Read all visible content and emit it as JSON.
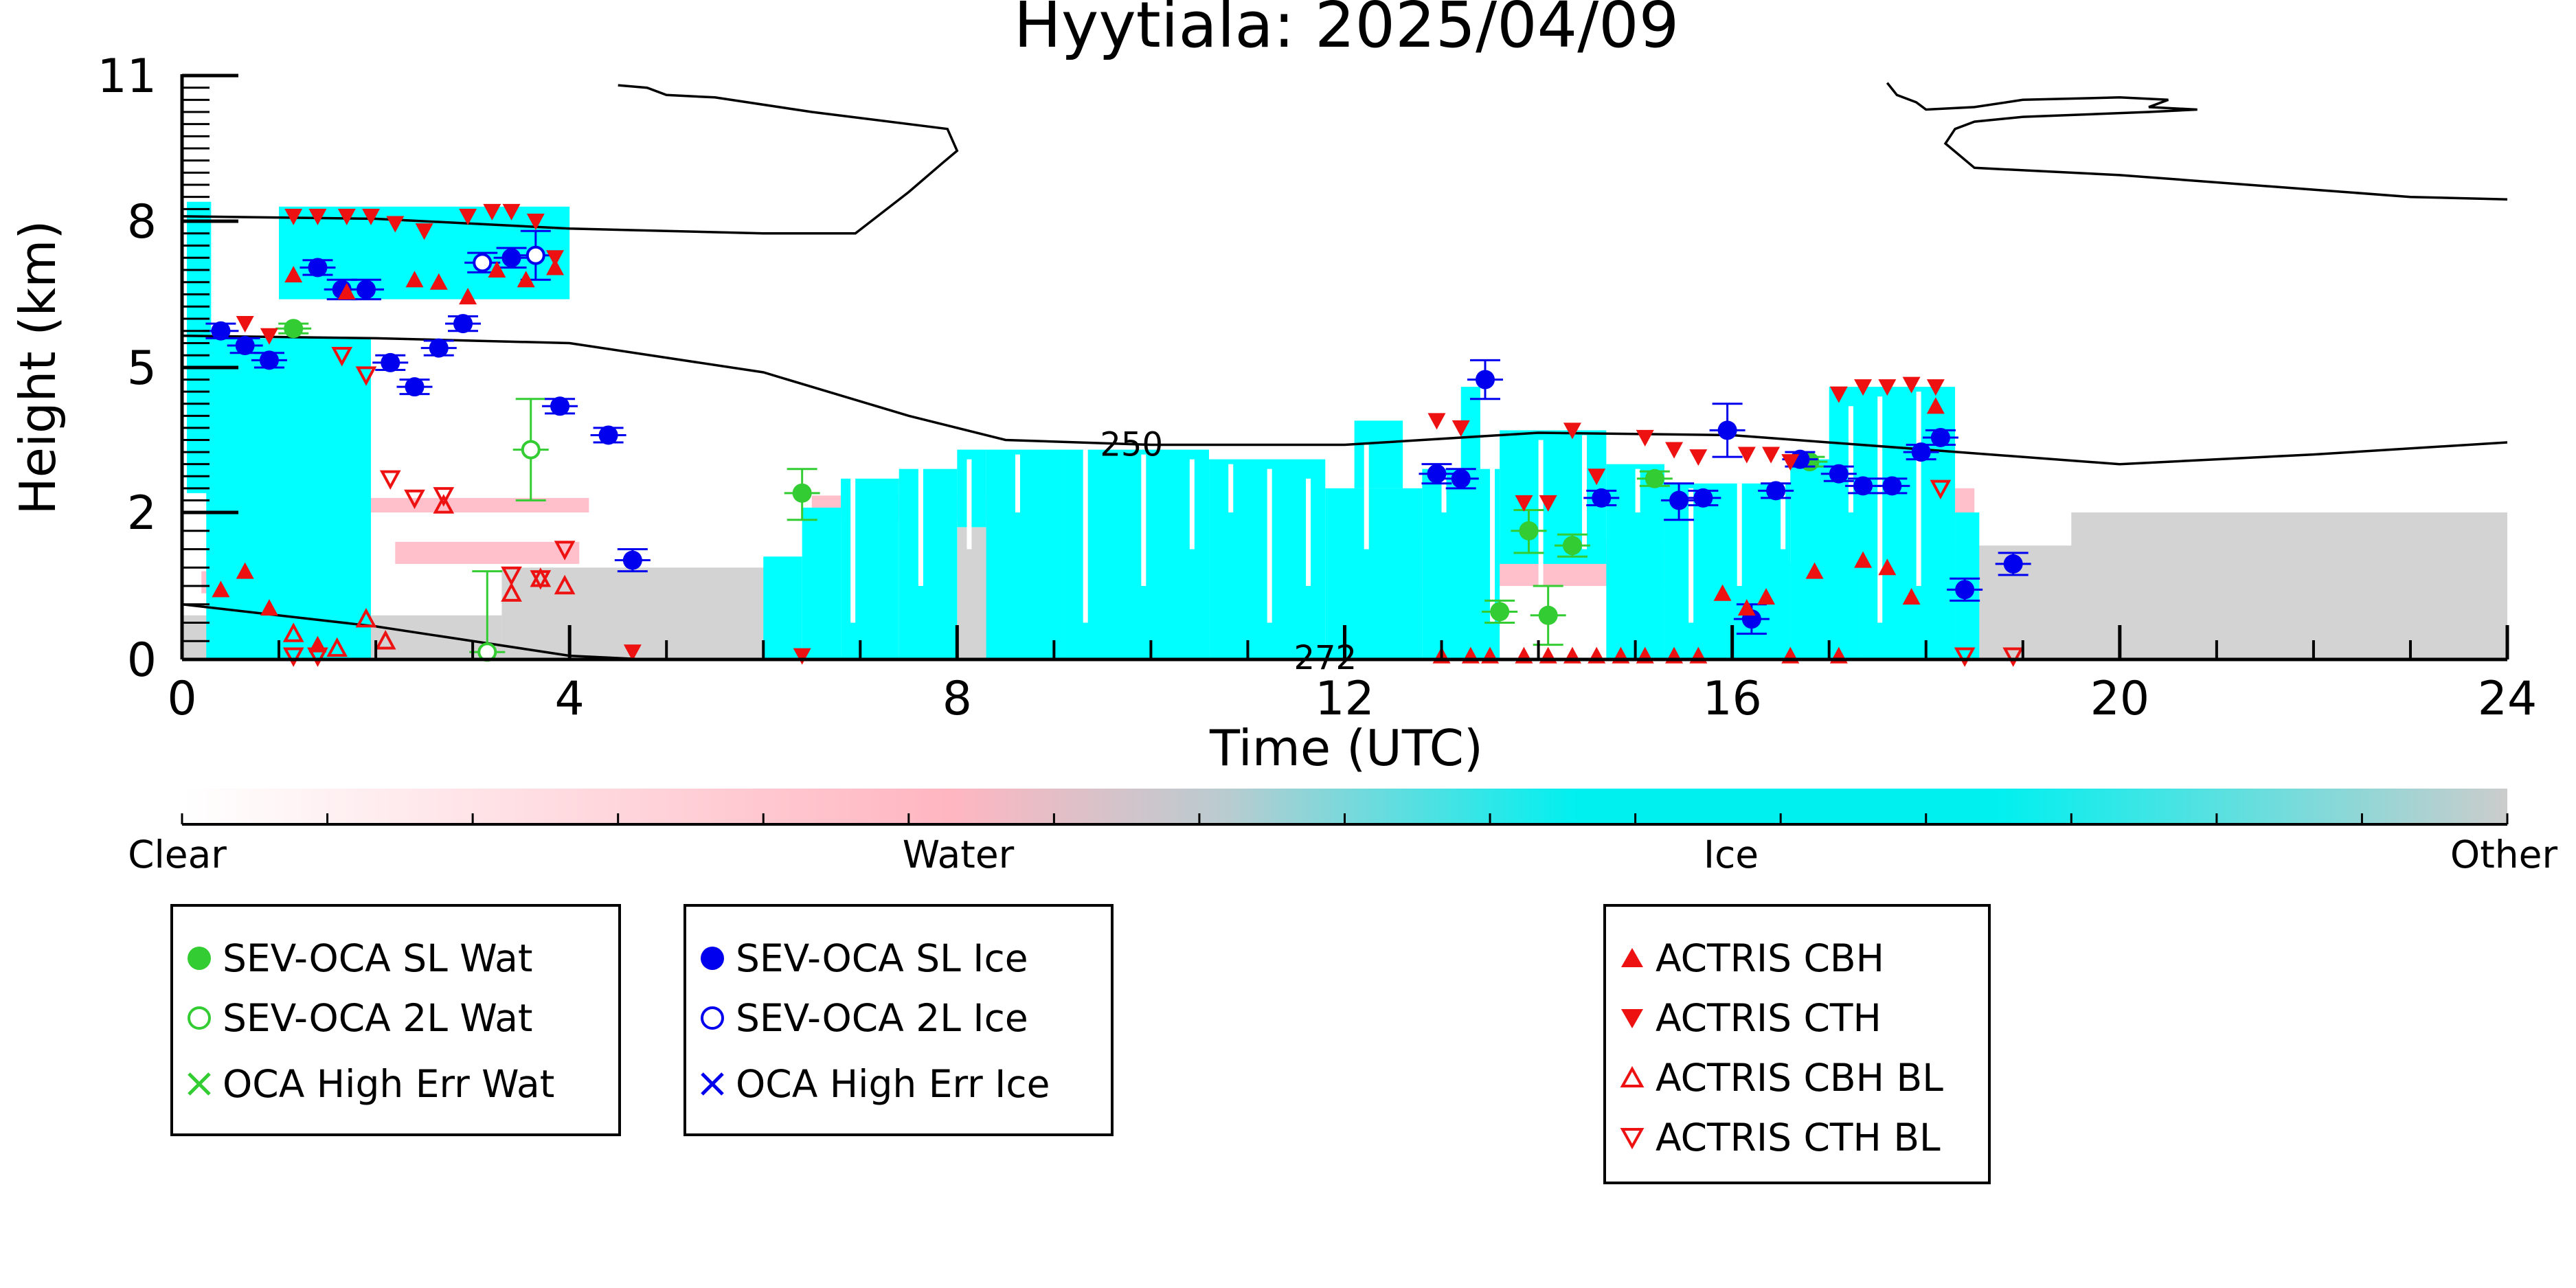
{
  "chart_data": {
    "type": "scatter",
    "title": "Hyytiala: 2025/04/09",
    "xlabel": "Time (UTC)",
    "ylabel": "Height (km)",
    "xlim": [
      0,
      24
    ],
    "ylim": [
      0,
      11
    ],
    "x_ticks": [
      0,
      4,
      8,
      12,
      16,
      20,
      24
    ],
    "y_ticks": [
      0,
      2,
      5,
      8,
      11
    ],
    "y_tick_labels": [
      "0",
      "2",
      "5",
      "8",
      "11"
    ],
    "colorbar": {
      "labels": [
        "Clear",
        "Water",
        "Ice",
        "Other"
      ],
      "colors": [
        "#ffffff",
        "#ffb6c1",
        "#00f0f0",
        "#cccccc"
      ]
    },
    "cloud_mask_colors": {
      "water": "#ffc0cb",
      "ice": "#00ffff",
      "other": "#d3d3d3"
    },
    "isotherms": [
      {
        "label": "250",
        "points": [
          [
            0,
            5.65
          ],
          [
            2,
            5.6
          ],
          [
            4,
            5.5
          ],
          [
            6,
            4.9
          ],
          [
            7.5,
            4.0
          ],
          [
            8.5,
            3.5
          ],
          [
            10,
            3.4
          ],
          [
            12,
            3.4
          ],
          [
            14,
            3.65
          ],
          [
            16,
            3.6
          ],
          [
            18,
            3.3
          ],
          [
            20,
            3.0
          ],
          [
            22,
            3.2
          ],
          [
            24,
            3.45
          ]
        ]
      },
      {
        "label": "272",
        "points": [
          [
            0,
            0.75
          ],
          [
            2,
            0.45
          ],
          [
            4,
            0.05
          ],
          [
            4.8,
            0.0
          ]
        ]
      },
      {
        "label": "",
        "points": [
          [
            0,
            8.1
          ],
          [
            2,
            8.05
          ],
          [
            4,
            7.85
          ],
          [
            6,
            7.75
          ],
          [
            6.95,
            7.75
          ],
          [
            7.5,
            8.6
          ],
          [
            7.85,
            9.2
          ],
          [
            8.0,
            9.45
          ],
          [
            7.9,
            9.9
          ],
          [
            6.5,
            10.25
          ],
          [
            5.5,
            10.55
          ],
          [
            5.0,
            10.6
          ],
          [
            4.8,
            10.75
          ],
          [
            4.5,
            10.8
          ]
        ]
      },
      {
        "label": "",
        "points": [
          [
            17.6,
            10.85
          ],
          [
            17.7,
            10.6
          ],
          [
            17.9,
            10.45
          ],
          [
            18.0,
            10.3
          ],
          [
            18.5,
            10.35
          ],
          [
            19.0,
            10.5
          ],
          [
            20.0,
            10.55
          ],
          [
            20.5,
            10.5
          ],
          [
            20.3,
            10.35
          ],
          [
            20.8,
            10.3
          ],
          [
            20.3,
            10.25
          ],
          [
            19.0,
            10.15
          ],
          [
            18.5,
            10.05
          ],
          [
            18.3,
            9.9
          ],
          [
            18.2,
            9.6
          ],
          [
            18.5,
            9.1
          ],
          [
            20,
            8.95
          ],
          [
            22,
            8.65
          ],
          [
            23,
            8.5
          ],
          [
            24,
            8.45
          ]
        ]
      }
    ],
    "series": [
      {
        "name": "SEV-OCA SL Wat",
        "color": "#33cc33",
        "marker": "circle-filled",
        "points": [
          [
            1.15,
            5.8,
            0.1
          ],
          [
            6.4,
            2.4,
            0.5
          ],
          [
            13.6,
            0.65,
            0.15
          ],
          [
            13.9,
            1.75,
            0.3
          ],
          [
            14.1,
            0.6,
            0.4
          ],
          [
            14.35,
            1.55,
            0.15
          ],
          [
            15.2,
            2.7,
            0.15
          ],
          [
            16.8,
            3.05,
            0.1
          ]
        ]
      },
      {
        "name": "SEV-OCA 2L Wat",
        "color": "#33cc33",
        "marker": "circle-open",
        "points": [
          [
            3.15,
            0.1,
            1.1
          ],
          [
            3.6,
            3.3,
            1.05
          ]
        ]
      },
      {
        "name": "OCA High Err Wat",
        "color": "#33cc33",
        "marker": "x",
        "points": []
      },
      {
        "name": "SEV-OCA SL Ice",
        "color": "#0000ee",
        "marker": "circle-filled",
        "points": [
          [
            0.4,
            5.75,
            0.15
          ],
          [
            0.65,
            5.45,
            0.15
          ],
          [
            0.9,
            5.15,
            0.15
          ],
          [
            1.4,
            7.05,
            0.15
          ],
          [
            1.65,
            6.6,
            0.2
          ],
          [
            1.9,
            6.6,
            0.2
          ],
          [
            2.15,
            5.1,
            0.15
          ],
          [
            2.4,
            4.6,
            0.15
          ],
          [
            2.65,
            5.4,
            0.15
          ],
          [
            2.9,
            5.9,
            0.15
          ],
          [
            3.4,
            7.25,
            0.2
          ],
          [
            3.9,
            4.2,
            0.15
          ],
          [
            4.4,
            3.6,
            0.15
          ],
          [
            4.65,
            1.35,
            0.15
          ],
          [
            12.95,
            2.8,
            0.2
          ],
          [
            13.2,
            2.7,
            0.2
          ],
          [
            13.45,
            4.75,
            0.4
          ],
          [
            14.65,
            2.3,
            0.15
          ],
          [
            15.45,
            2.25,
            0.35
          ],
          [
            15.7,
            2.3,
            0.15
          ],
          [
            15.95,
            3.7,
            0.55
          ],
          [
            16.2,
            0.55,
            0.2
          ],
          [
            16.45,
            2.45,
            0.15
          ],
          [
            16.7,
            3.1,
            0.15
          ],
          [
            17.1,
            2.8,
            0.15
          ],
          [
            17.35,
            2.55,
            0.15
          ],
          [
            17.65,
            2.55,
            0.15
          ],
          [
            17.95,
            3.25,
            0.15
          ],
          [
            18.15,
            3.55,
            0.15
          ],
          [
            18.4,
            0.95,
            0.15
          ],
          [
            18.9,
            1.3,
            0.15
          ]
        ]
      },
      {
        "name": "SEV-OCA 2L Ice",
        "color": "#0000ee",
        "marker": "circle-open",
        "points": [
          [
            3.1,
            7.15,
            0.2
          ],
          [
            3.65,
            7.3,
            0.5
          ]
        ]
      },
      {
        "name": "OCA High Err Ice",
        "color": "#0000ee",
        "marker": "x",
        "points": []
      },
      {
        "name": "ACTRIS CBH",
        "color": "#ee1111",
        "marker": "triangle-up-filled",
        "points": [
          [
            0.4,
            0.95
          ],
          [
            0.65,
            1.2
          ],
          [
            0.9,
            0.7
          ],
          [
            1.15,
            6.9
          ],
          [
            1.4,
            0.2
          ],
          [
            1.7,
            6.55
          ],
          [
            2.4,
            6.8
          ],
          [
            2.65,
            6.75
          ],
          [
            2.95,
            6.45
          ],
          [
            3.25,
            7.0
          ],
          [
            3.55,
            6.8
          ],
          [
            3.85,
            7.05
          ],
          [
            13.0,
            0.05
          ],
          [
            13.3,
            0.05
          ],
          [
            13.5,
            0.05
          ],
          [
            13.85,
            0.05
          ],
          [
            14.1,
            0.05
          ],
          [
            14.35,
            0.05
          ],
          [
            14.6,
            0.05
          ],
          [
            14.85,
            0.05
          ],
          [
            15.1,
            0.05
          ],
          [
            15.4,
            0.05
          ],
          [
            15.65,
            0.05
          ],
          [
            15.9,
            0.9
          ],
          [
            16.15,
            0.7
          ],
          [
            16.35,
            0.85
          ],
          [
            16.6,
            0.05
          ],
          [
            16.85,
            1.2
          ],
          [
            17.1,
            0.05
          ],
          [
            17.35,
            1.35
          ],
          [
            17.6,
            1.25
          ],
          [
            17.85,
            0.85
          ],
          [
            18.1,
            4.2
          ]
        ]
      },
      {
        "name": "ACTRIS CTH",
        "color": "#ee1111",
        "marker": "triangle-down-filled",
        "points": [
          [
            0.65,
            5.9
          ],
          [
            0.9,
            5.65
          ],
          [
            1.15,
            8.1
          ],
          [
            1.4,
            8.1
          ],
          [
            1.7,
            8.1
          ],
          [
            1.95,
            8.1
          ],
          [
            2.2,
            7.95
          ],
          [
            2.5,
            7.8
          ],
          [
            2.95,
            8.1
          ],
          [
            3.2,
            8.2
          ],
          [
            3.4,
            8.2
          ],
          [
            3.65,
            8.0
          ],
          [
            3.85,
            7.25
          ],
          [
            4.65,
            0.1
          ],
          [
            6.4,
            0.05
          ],
          [
            12.95,
            3.9
          ],
          [
            13.2,
            3.75
          ],
          [
            13.85,
            2.2
          ],
          [
            14.1,
            2.2
          ],
          [
            14.35,
            3.7
          ],
          [
            14.6,
            2.75
          ],
          [
            15.1,
            3.55
          ],
          [
            15.4,
            3.3
          ],
          [
            15.65,
            3.15
          ],
          [
            16.15,
            3.2
          ],
          [
            16.4,
            3.2
          ],
          [
            16.6,
            3.05
          ],
          [
            17.1,
            4.45
          ],
          [
            17.35,
            4.6
          ],
          [
            17.6,
            4.6
          ],
          [
            17.85,
            4.65
          ],
          [
            18.1,
            4.6
          ]
        ]
      },
      {
        "name": "ACTRIS CBH BL",
        "color": "#ee1111",
        "marker": "triangle-up-open",
        "points": [
          [
            1.15,
            0.35
          ],
          [
            1.6,
            0.15
          ],
          [
            1.9,
            0.55
          ],
          [
            2.1,
            0.25
          ],
          [
            2.7,
            2.15
          ],
          [
            3.4,
            0.9
          ],
          [
            3.7,
            1.1
          ],
          [
            3.95,
            1.0
          ]
        ]
      },
      {
        "name": "ACTRIS CTH BL",
        "color": "#ee1111",
        "marker": "triangle-down-open",
        "points": [
          [
            1.15,
            0.05
          ],
          [
            1.4,
            0.05
          ],
          [
            1.65,
            5.25
          ],
          [
            1.9,
            4.85
          ],
          [
            2.15,
            2.7
          ],
          [
            2.4,
            2.3
          ],
          [
            2.7,
            2.35
          ],
          [
            3.4,
            1.15
          ],
          [
            3.7,
            1.1
          ],
          [
            3.95,
            1.5
          ],
          [
            18.15,
            2.5
          ],
          [
            18.4,
            0.05
          ],
          [
            18.9,
            0.05
          ]
        ]
      }
    ]
  },
  "legend": {
    "box1": [
      "SEV-OCA SL Wat",
      "SEV-OCA 2L Wat",
      "OCA High Err Wat"
    ],
    "box2": [
      "SEV-OCA SL Ice",
      "SEV-OCA 2L Ice",
      "OCA High Err Ice"
    ],
    "box3": [
      "ACTRIS CBH",
      "ACTRIS CTH",
      "ACTRIS CBH BL",
      "ACTRIS CTH BL"
    ]
  }
}
